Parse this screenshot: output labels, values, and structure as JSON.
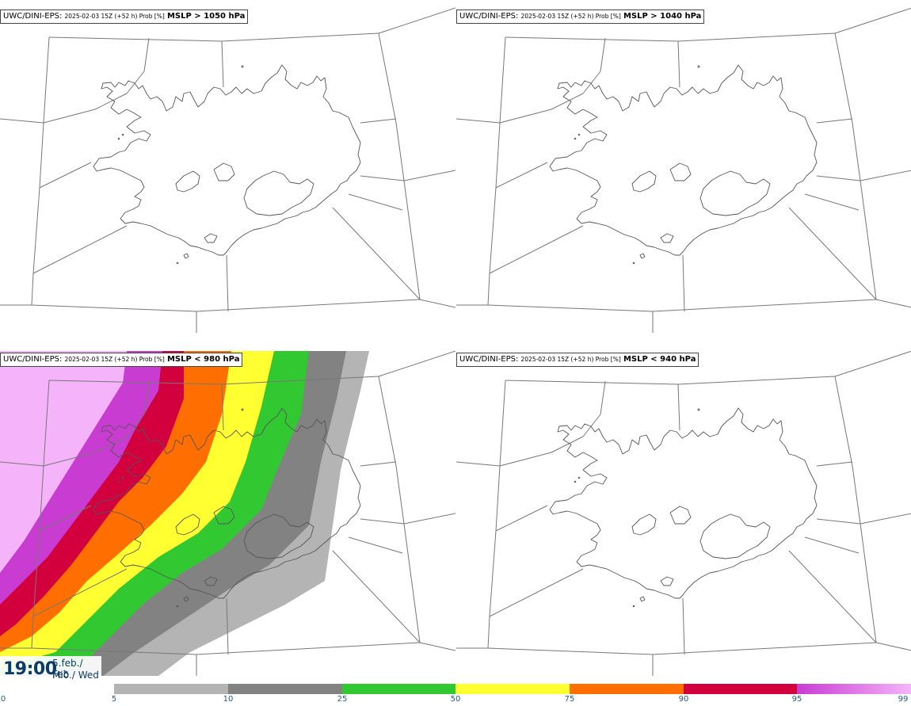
{
  "panels": [
    {
      "source": "UWC/DINI-EPS",
      "run": "2025-02-03 15Z (+52 h) Prob [%]",
      "variable": "MSLP > 1050 hPa"
    },
    {
      "source": "UWC/DINI-EPS",
      "run": "2025-02-03 15Z (+52 h) Prob [%]",
      "variable": "MSLP > 1040 hPa"
    },
    {
      "source": "UWC/DINI-EPS",
      "run": "2025-02-03 15Z (+52 h) Prob [%]",
      "variable": "MSLP < 980 hPa"
    },
    {
      "source": "UWC/DINI-EPS",
      "run": "2025-02-03 15Z (+52 h) Prob [%]",
      "variable": "MSLP < 940 hPa"
    }
  ],
  "valid_time": {
    "time": "19:00",
    "date": "5.feb./ Feb",
    "weekday": "Mið./ Wed"
  },
  "legend": {
    "ticks": [
      "0",
      "5",
      "10",
      "25",
      "50",
      "75",
      "90",
      "95",
      "99"
    ],
    "colors": [
      "#ffffff",
      "#b4b4b4",
      "#828282",
      "#32c832",
      "#ffff32",
      "#ff6e00",
      "#d2003c",
      "#c83cd2",
      "#f5b4fa"
    ]
  },
  "colors": {
    "coast": "#555555",
    "grid": "#777777",
    "title_border": "#444444",
    "time_text": "#0f3a66"
  }
}
